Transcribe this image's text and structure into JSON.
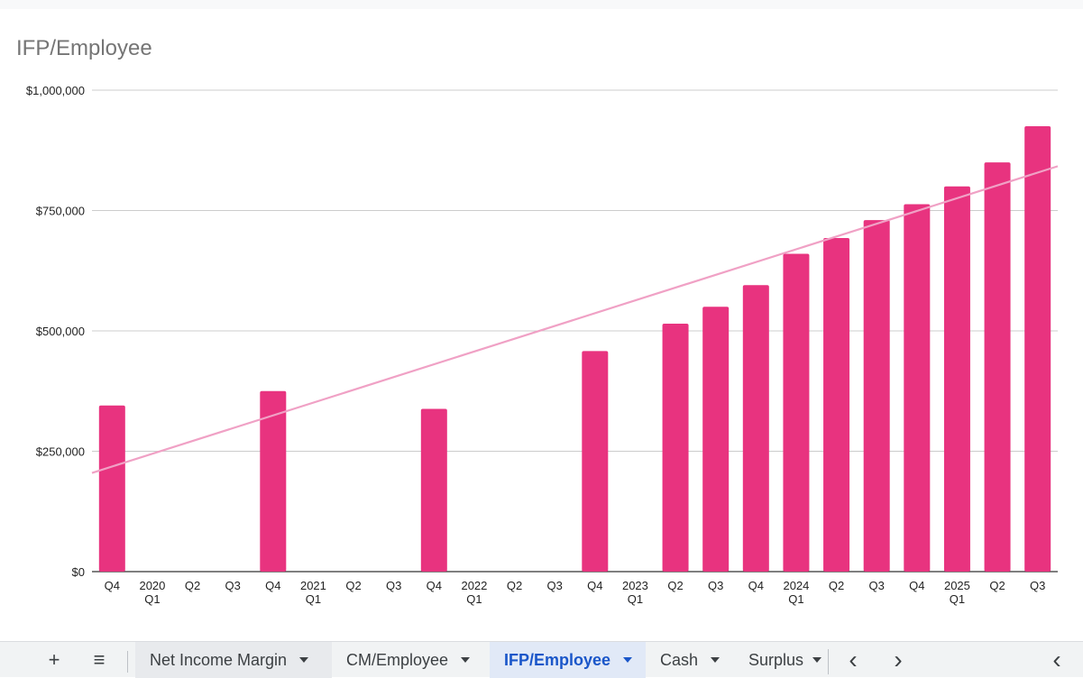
{
  "chart_data": {
    "type": "bar",
    "title": "IFP/Employee",
    "xlabel": "",
    "ylabel": "",
    "ylim": [
      0,
      1000000
    ],
    "y_ticks": [
      "$0",
      "$250,000",
      "$500,000",
      "$750,000",
      "$1,000,000"
    ],
    "y_tick_values": [
      0,
      250000,
      500000,
      750000,
      1000000
    ],
    "grid": true,
    "colors": {
      "bar": "#e8337f",
      "trendline": "#f0a1c5",
      "grid": "#cccccc"
    },
    "categories": [
      {
        "label": "Q4",
        "sub": ""
      },
      {
        "label": "2020",
        "sub": "Q1"
      },
      {
        "label": "Q2",
        "sub": ""
      },
      {
        "label": "Q3",
        "sub": ""
      },
      {
        "label": "Q4",
        "sub": ""
      },
      {
        "label": "2021",
        "sub": "Q1"
      },
      {
        "label": "Q2",
        "sub": ""
      },
      {
        "label": "Q3",
        "sub": ""
      },
      {
        "label": "Q4",
        "sub": ""
      },
      {
        "label": "2022",
        "sub": "Q1"
      },
      {
        "label": "Q2",
        "sub": ""
      },
      {
        "label": "Q3",
        "sub": ""
      },
      {
        "label": "Q4",
        "sub": ""
      },
      {
        "label": "2023",
        "sub": "Q1"
      },
      {
        "label": "Q2",
        "sub": ""
      },
      {
        "label": "Q3",
        "sub": ""
      },
      {
        "label": "Q4",
        "sub": ""
      },
      {
        "label": "2024",
        "sub": "Q1"
      },
      {
        "label": "Q2",
        "sub": ""
      },
      {
        "label": "Q3",
        "sub": ""
      },
      {
        "label": "Q4",
        "sub": ""
      },
      {
        "label": "2025",
        "sub": "Q1"
      },
      {
        "label": "Q2",
        "sub": ""
      },
      {
        "label": "Q3",
        "sub": ""
      }
    ],
    "values": [
      345000,
      0,
      0,
      0,
      375000,
      0,
      0,
      0,
      338000,
      0,
      0,
      0,
      458000,
      0,
      515000,
      550000,
      595000,
      660000,
      693000,
      730000,
      763000,
      800000,
      850000,
      925000
    ],
    "trendline": {
      "type": "linear",
      "start_value": 205000,
      "end_value": 842000
    }
  },
  "tab_bar": {
    "add_sheet_symbol": "+",
    "sheet_list_symbol": "≡",
    "tabs": [
      {
        "label": "Net Income Margin",
        "active": false
      },
      {
        "label": "CM/Employee",
        "active": false
      },
      {
        "label": "IFP/Employee",
        "active": true
      },
      {
        "label": "Cash",
        "active": false
      },
      {
        "label": "Surplus",
        "active": false
      }
    ],
    "scroll_left_symbol": "‹",
    "scroll_right_symbol": "›",
    "collapse_symbol": "‹"
  }
}
